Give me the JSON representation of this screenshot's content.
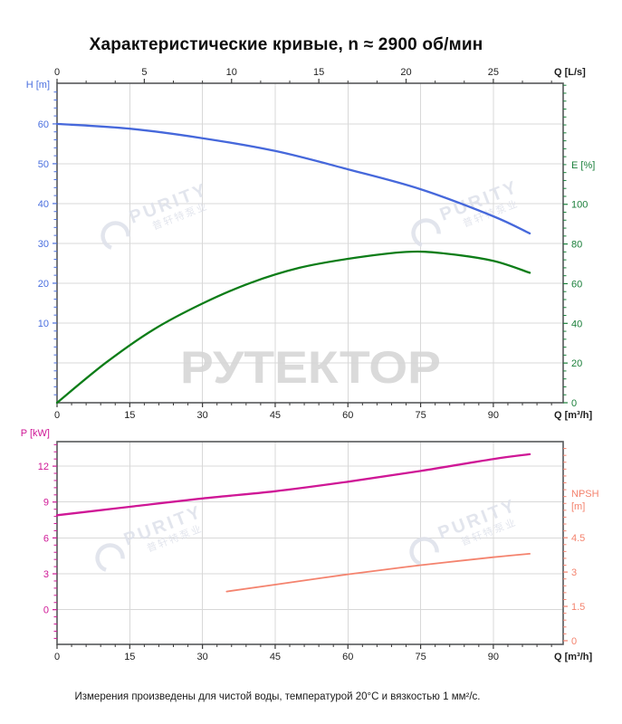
{
  "title": "Характеристические кривые, n ≈ 2900 об/мин",
  "footer": "Измерения произведены для чистой воды, температурой 20°C и вязкостью 1 мм²/с.",
  "watermarks": {
    "logo_text": "РУТЕКТОР",
    "logo_color": "#d6d6d6",
    "purity_text": "PURITY",
    "purity_subtext": "普轩特泵业",
    "purity_color": "#dee1ea"
  },
  "colors": {
    "grid": "#d8d8d8",
    "border": "#57585a",
    "black_text": "#1f1f1f",
    "head_blue": "#4668db",
    "efficiency_green": "#0d7d18",
    "green_axis": "#1a7f3a",
    "power_magenta": "#cf1796",
    "npsh_salmon": "#f4836e"
  },
  "chart_data": [
    {
      "type": "line",
      "plot": "top",
      "x_bottom": {
        "label": "Q [m³/h]",
        "ticks": [
          0,
          15,
          30,
          45,
          60,
          75,
          90
        ],
        "minor_step": 3,
        "range": [
          0,
          104.4
        ]
      },
      "x_top": {
        "label": "Q [L/s]",
        "ticks": [
          0,
          5,
          10,
          15,
          20,
          25
        ],
        "minor_step": 1.6667,
        "range": [
          0,
          29.0
        ]
      },
      "y_left": {
        "label": [
          "H [m]"
        ],
        "ticks": [
          10,
          20,
          30,
          40,
          50,
          60
        ],
        "minor_step": 2,
        "range": [
          -10,
          70.2
        ],
        "color": "#4a6fdf"
      },
      "y_right": {
        "label": [
          "E [%]"
        ],
        "ticks": [
          0,
          20,
          40,
          60,
          80,
          100
        ],
        "minor_step": 4,
        "range": [
          0,
          161
        ],
        "color": "#1a7f3a"
      },
      "series": [
        {
          "name": "head",
          "quantity": "H",
          "axis": "left",
          "color": "#4668db",
          "width": 2.3,
          "points": [
            [
              0,
              60
            ],
            [
              15,
              58.8
            ],
            [
              30,
              56.4
            ],
            [
              45,
              53.2
            ],
            [
              60,
              48.6
            ],
            [
              75,
              43.6
            ],
            [
              90,
              36.8
            ],
            [
              97.5,
              32.5
            ]
          ]
        },
        {
          "name": "efficiency",
          "quantity": "E",
          "axis": "right",
          "color": "#0d7d18",
          "width": 2.3,
          "points": [
            [
              0,
              0
            ],
            [
              10,
              20
            ],
            [
              20,
              37
            ],
            [
              30,
              50
            ],
            [
              40,
              60.5
            ],
            [
              50,
              68
            ],
            [
              60,
              72.5
            ],
            [
              72,
              76
            ],
            [
              80,
              75.2
            ],
            [
              90,
              71.5
            ],
            [
              97.5,
              65.5
            ]
          ]
        }
      ]
    },
    {
      "type": "line",
      "plot": "bottom",
      "x_bottom": {
        "label": "Q [m³/h]",
        "ticks": [
          0,
          15,
          30,
          45,
          60,
          75,
          90
        ],
        "minor_step": 3,
        "range": [
          0,
          104.4
        ]
      },
      "y_left": {
        "label": [
          "P [kW]"
        ],
        "ticks": [
          0,
          3,
          6,
          9,
          12
        ],
        "minor_step": 0.6,
        "range": [
          -2.9,
          14.05
        ],
        "color": "#cf1796"
      },
      "y_right": {
        "label": [
          "NPSH",
          "[m]"
        ],
        "ticks": [
          0,
          1.5,
          3,
          4.5
        ],
        "minor_step": 0.3,
        "range": [
          -0.16,
          8.7
        ],
        "color": "#f4836e"
      },
      "series": [
        {
          "name": "power",
          "quantity": "P",
          "axis": "left",
          "color": "#cf1796",
          "width": 2.3,
          "points": [
            [
              0,
              7.9
            ],
            [
              15,
              8.6
            ],
            [
              30,
              9.3
            ],
            [
              45,
              9.9
            ],
            [
              60,
              10.7
            ],
            [
              75,
              11.6
            ],
            [
              90,
              12.6
            ],
            [
              97.5,
              13.0
            ]
          ]
        },
        {
          "name": "npsh",
          "quantity": "NPSH",
          "axis": "right",
          "color": "#f4836e",
          "width": 1.8,
          "points": [
            [
              35,
              2.15
            ],
            [
              45,
              2.45
            ],
            [
              60,
              2.9
            ],
            [
              75,
              3.3
            ],
            [
              90,
              3.65
            ],
            [
              97.5,
              3.8
            ]
          ]
        }
      ]
    }
  ]
}
